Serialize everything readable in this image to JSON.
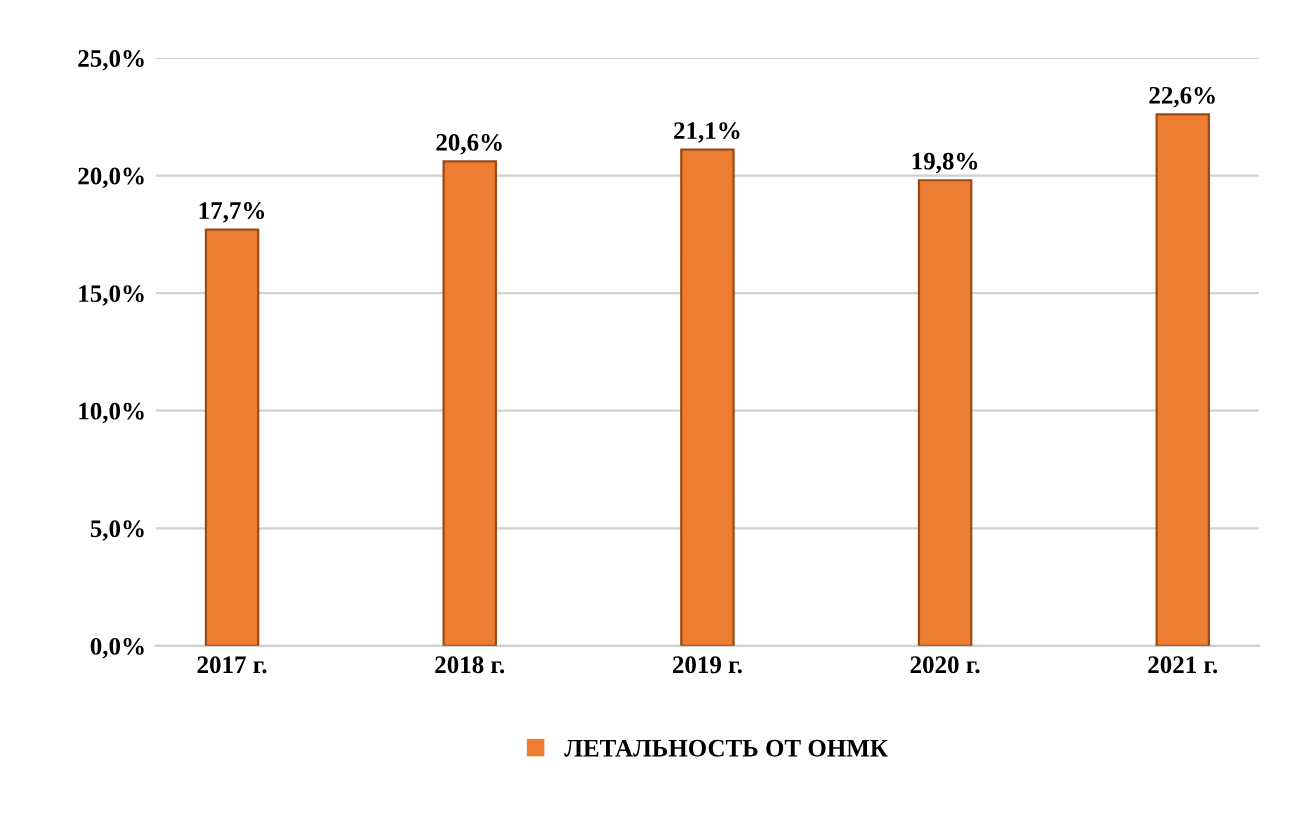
{
  "chart_data": {
    "type": "bar",
    "categories": [
      "2017 г.",
      "2018 г.",
      "2019 г.",
      "2020 г.",
      "2021 г."
    ],
    "series": [
      {
        "name": "ЛЕТАЛЬНОСТЬ ОТ ОНМК",
        "color": "#ed7d31",
        "values": [
          17.7,
          20.6,
          21.1,
          19.8,
          22.6
        ],
        "value_labels": [
          "17,7%",
          "20,6%",
          "21,1%",
          "19,8%",
          "22,6%"
        ]
      }
    ],
    "ylim": [
      0,
      25
    ],
    "yticks": [
      {
        "value": 0,
        "label": "0,0%"
      },
      {
        "value": 5,
        "label": "5,0%"
      },
      {
        "value": 10,
        "label": "10,0%"
      },
      {
        "value": 15,
        "label": "15,0%"
      },
      {
        "value": 20,
        "label": "20,0%"
      },
      {
        "value": 25,
        "label": "25,0%"
      }
    ],
    "grid": "y",
    "legend": "bottom"
  }
}
